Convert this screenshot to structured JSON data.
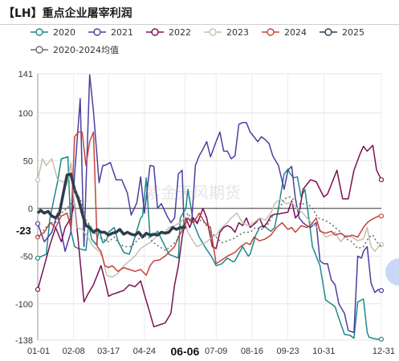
{
  "title": "【LH】重点企业屠宰利润",
  "watermark": "紫金天风期货",
  "chart_data": {
    "type": "line",
    "title": "【LH】重点企业屠宰利润",
    "xlabel": "",
    "ylabel": "",
    "ylim": [
      -138,
      141
    ],
    "y_ticks": [
      141,
      100,
      50,
      0,
      -50,
      -100,
      -138
    ],
    "y_marker": -23,
    "x_ticks": [
      "01-01",
      "02-08",
      "03-17",
      "04-24",
      "06-06",
      "07-09",
      "08-16",
      "09-23",
      "10-31",
      "12-31"
    ],
    "x_ticks_day": [
      1,
      39,
      76,
      114,
      157,
      190,
      228,
      266,
      304,
      365
    ],
    "highlight_tick": "06-06",
    "grid": true,
    "legend_position": "top",
    "series": [
      {
        "name": "2020",
        "color": "#1a8a8a",
        "width": 1.5,
        "dash": "",
        "x": [
          1,
          10,
          14,
          22,
          26,
          33,
          36,
          40,
          44,
          52,
          55,
          58,
          63,
          66,
          70,
          74,
          76,
          82,
          86,
          92,
          98,
          104,
          110,
          112,
          116,
          120,
          124,
          128,
          140,
          145,
          150,
          152,
          158,
          160,
          166,
          172,
          178,
          182,
          186,
          190,
          196,
          202,
          208,
          210,
          218,
          224,
          226,
          232,
          236,
          240,
          248,
          252,
          256,
          262,
          266,
          268,
          272,
          276,
          280,
          284,
          290,
          292,
          300,
          306,
          312,
          316,
          320,
          326,
          332,
          336,
          340,
          344,
          346,
          350,
          352,
          356,
          360,
          365
        ],
        "y": [
          -52,
          -48,
          -10,
          28,
          52,
          54,
          -23,
          -40,
          -42,
          -44,
          -16,
          -32,
          -38,
          -22,
          -36,
          -33,
          -25,
          -20,
          -34,
          -46,
          -48,
          -30,
          -10,
          -8,
          32,
          -30,
          -28,
          -24,
          -48,
          -50,
          -52,
          -10,
          0,
          20,
          -15,
          -30,
          -40,
          -46,
          -52,
          -60,
          -58,
          -52,
          -56,
          -55,
          -40,
          -50,
          -48,
          -28,
          -20,
          -18,
          -24,
          -20,
          0,
          36,
          41,
          37,
          32,
          33,
          12,
          20,
          -24,
          -40,
          -60,
          -96,
          -100,
          -103,
          -115,
          -132,
          -133,
          -136,
          -98,
          -96,
          -95,
          -130,
          -135,
          -136,
          -137,
          -137
        ]
      },
      {
        "name": "2021",
        "color": "#4b3f9e",
        "width": 1.5,
        "dash": "",
        "x": [
          1,
          8,
          16,
          22,
          30,
          36,
          40,
          46,
          50,
          56,
          60,
          66,
          70,
          72,
          78,
          84,
          90,
          96,
          100,
          106,
          110,
          114,
          120,
          124,
          128,
          132,
          138,
          142,
          146,
          150,
          154,
          156,
          160,
          164,
          168,
          172,
          176,
          180,
          184,
          190,
          194,
          198,
          202,
          206,
          210,
          214,
          218,
          222,
          226,
          230,
          234,
          238,
          242,
          246,
          250,
          256,
          262,
          266,
          270,
          274,
          278,
          282,
          286,
          290,
          296,
          300,
          304,
          308,
          312,
          316,
          320,
          326,
          330,
          336,
          340,
          344,
          346,
          350,
          354,
          358,
          362,
          365
        ],
        "y": [
          -16,
          -35,
          -25,
          -5,
          -45,
          -25,
          35,
          115,
          -40,
          140,
          102,
          27,
          45,
          45,
          48,
          30,
          30,
          16,
          -7,
          6,
          33,
          -5,
          45,
          44,
          0,
          5,
          -8,
          -15,
          -10,
          36,
          40,
          -20,
          -10,
          -15,
          45,
          55,
          62,
          70,
          54,
          70,
          80,
          60,
          60,
          52,
          55,
          88,
          90,
          90,
          80,
          75,
          70,
          75,
          72,
          68,
          55,
          45,
          20,
          40,
          44,
          10,
          -10,
          -15,
          -18,
          -20,
          -15,
          -55,
          -58,
          -58,
          -75,
          -80,
          -100,
          -110,
          -128,
          -130,
          -50,
          -52,
          -45,
          -40,
          -78,
          -88,
          -85,
          -86
        ]
      },
      {
        "name": "2022",
        "color": "#7a1052",
        "width": 1.5,
        "dash": "",
        "x": [
          1,
          8,
          14,
          20,
          26,
          30,
          36,
          40,
          44,
          50,
          54,
          60,
          64,
          68,
          72,
          76,
          80,
          86,
          92,
          98,
          104,
          110,
          114,
          120,
          124,
          130,
          136,
          142,
          146,
          150,
          154,
          158,
          162,
          166,
          170,
          176,
          180,
          186,
          190,
          194,
          198,
          202,
          206,
          210,
          214,
          218,
          222,
          226,
          232,
          236,
          240,
          244,
          248,
          252,
          256,
          260,
          266,
          270,
          274,
          278,
          282,
          286,
          290,
          296,
          300,
          304,
          308,
          312,
          318,
          324,
          330,
          336,
          342,
          346,
          350,
          356,
          360,
          365
        ],
        "y": [
          -85,
          -60,
          -38,
          -20,
          -35,
          -20,
          -10,
          5,
          -35,
          -98,
          -90,
          -80,
          -70,
          -60,
          -75,
          -92,
          -90,
          -88,
          -86,
          -80,
          -82,
          -76,
          -90,
          -110,
          -124,
          -122,
          -120,
          -110,
          -80,
          -60,
          -30,
          -10,
          -20,
          -10,
          -16,
          0,
          -10,
          -40,
          -42,
          -25,
          -20,
          -18,
          -20,
          -25,
          -15,
          -18,
          -10,
          -20,
          -15,
          -10,
          -20,
          -15,
          -8,
          -6,
          -6,
          -5,
          -4,
          8,
          -10,
          -5,
          20,
          25,
          30,
          28,
          20,
          12,
          15,
          25,
          40,
          10,
          10,
          40,
          56,
          65,
          60,
          66,
          40,
          30
        ]
      },
      {
        "name": "2023",
        "color": "#c5bfae",
        "width": 1.5,
        "dash": "",
        "x": [
          1,
          6,
          10,
          16,
          22,
          28,
          32,
          36,
          42,
          48,
          54,
          60,
          66,
          70,
          74,
          80,
          86,
          92,
          98,
          104,
          110,
          116,
          120,
          126,
          130,
          136,
          140,
          146,
          152,
          156,
          160,
          166,
          170,
          174,
          180,
          186,
          190,
          196,
          202,
          206,
          212,
          218,
          224,
          230,
          236,
          242,
          248,
          252,
          258,
          264,
          270,
          276,
          282,
          288,
          294,
          300,
          306,
          312,
          316,
          322,
          328,
          334,
          340,
          346,
          350,
          354,
          358,
          362,
          365
        ],
        "y": [
          30,
          52,
          45,
          52,
          30,
          28,
          25,
          48,
          -20,
          -22,
          -30,
          -40,
          -45,
          -52,
          -70,
          -72,
          -68,
          -60,
          -55,
          -50,
          -42,
          -38,
          -36,
          -30,
          -26,
          -25,
          -20,
          -18,
          -15,
          -10,
          -25,
          -35,
          -40,
          -38,
          -35,
          -30,
          -28,
          -20,
          -15,
          -10,
          -5,
          -15,
          -18,
          -15,
          -10,
          -12,
          -5,
          5,
          10,
          5,
          6,
          0,
          -5,
          -12,
          -18,
          -22,
          -30,
          -28,
          -25,
          -35,
          -28,
          -30,
          -34,
          -32,
          -20,
          -40,
          -45,
          -40,
          -38
        ]
      },
      {
        "name": "2024",
        "color": "#c8433b",
        "width": 1.5,
        "dash": "",
        "x": [
          1,
          8,
          14,
          20,
          26,
          32,
          36,
          40,
          44,
          48,
          52,
          56,
          60,
          64,
          68,
          72,
          76,
          80,
          86,
          92,
          98,
          104,
          110,
          116,
          120,
          124,
          130,
          136,
          140,
          146,
          150,
          156,
          160,
          166,
          172,
          178,
          184,
          190,
          196,
          202,
          206,
          210,
          216,
          222,
          226,
          230,
          236,
          242,
          248,
          254,
          260,
          266,
          270,
          274,
          280,
          286,
          290,
          296,
          300,
          306,
          312,
          316,
          322,
          328,
          334,
          340,
          346,
          350,
          354,
          358,
          362,
          365
        ],
        "y": [
          -30,
          -25,
          -15,
          -20,
          -8,
          -5,
          -20,
          75,
          80,
          80,
          45,
          70,
          80,
          -40,
          -45,
          -60,
          -62,
          -60,
          -66,
          -62,
          -64,
          -66,
          -64,
          -70,
          -60,
          -55,
          -54,
          -50,
          -46,
          -40,
          -30,
          -20,
          -10,
          -15,
          -5,
          -15,
          -20,
          -58,
          -54,
          -50,
          -48,
          -46,
          -40,
          -36,
          -38,
          -30,
          -34,
          -32,
          -28,
          -20,
          -15,
          -22,
          -20,
          -25,
          -18,
          -20,
          -18,
          -10,
          -24,
          -26,
          -24,
          -28,
          -26,
          -30,
          -28,
          -30,
          -20,
          -15,
          -12,
          -10,
          -8,
          -8
        ]
      },
      {
        "name": "2025",
        "color": "#2f3d4a",
        "width": 3.5,
        "dash": "",
        "x": [
          1,
          4,
          8,
          12,
          16,
          20,
          24,
          28,
          32,
          36,
          40,
          44,
          48,
          52,
          56,
          60,
          64,
          68,
          72,
          76,
          80,
          84,
          88,
          92,
          96,
          100,
          104,
          108,
          112,
          116,
          120,
          124,
          128,
          132,
          136,
          140,
          144,
          148,
          152,
          156,
          158
        ],
        "y": [
          -5,
          -2,
          -5,
          -3,
          -8,
          -10,
          -5,
          15,
          35,
          36,
          20,
          10,
          -5,
          -18,
          -20,
          -25,
          -22,
          -25,
          -25,
          -28,
          -26,
          -25,
          -22,
          -27,
          -25,
          -27,
          -28,
          -25,
          -30,
          -26,
          -28,
          -27,
          -28,
          -25,
          -26,
          -25,
          -20,
          -22,
          -20,
          -20,
          -20
        ]
      },
      {
        "name": "2020-2024均值",
        "color": "#6b6b6b",
        "width": 1.5,
        "dash": "2,3",
        "x": [
          1,
          8,
          14,
          20,
          26,
          32,
          36,
          40,
          46,
          52,
          58,
          64,
          70,
          76,
          82,
          88,
          94,
          100,
          106,
          112,
          118,
          124,
          130,
          136,
          142,
          148,
          154,
          160,
          166,
          172,
          178,
          184,
          190,
          196,
          202,
          208,
          214,
          220,
          226,
          232,
          238,
          244,
          250,
          256,
          262,
          268,
          274,
          280,
          286,
          292,
          298,
          304,
          310,
          316,
          322,
          328,
          334,
          340,
          346,
          352,
          356,
          360,
          365
        ],
        "y": [
          -30,
          -22,
          -15,
          -15,
          -5,
          0,
          5,
          20,
          10,
          -12,
          -20,
          -30,
          -32,
          -35,
          -30,
          -38,
          -40,
          -40,
          -34,
          -28,
          -30,
          -36,
          -40,
          -44,
          -40,
          -34,
          -20,
          -5,
          -15,
          -12,
          -15,
          -25,
          -30,
          -36,
          -34,
          -32,
          -28,
          -25,
          -25,
          -20,
          -22,
          -18,
          -8,
          -3,
          10,
          12,
          8,
          4,
          6,
          0,
          -10,
          -12,
          -15,
          -20,
          -25,
          -32,
          -35,
          -42,
          -40,
          -30,
          -28,
          -35,
          -40
        ]
      }
    ]
  }
}
